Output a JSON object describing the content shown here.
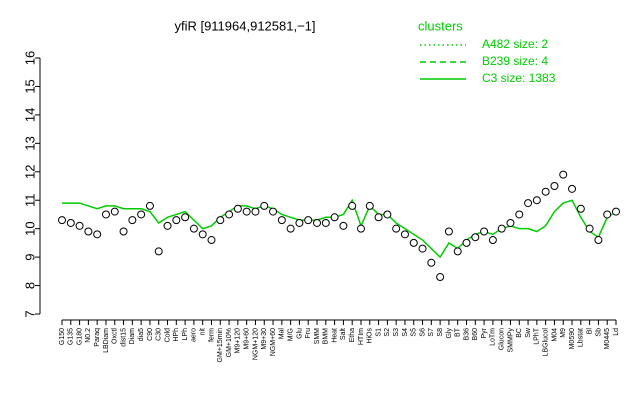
{
  "chart_data": {
    "type": "line",
    "title": "yfiR [911964,912581,−1]",
    "legend_title": "clusters",
    "categories": [
      "G150",
      "G135",
      "G180",
      "N0.2",
      "Paraq",
      "LBDiam",
      "Oxctl",
      "dist15",
      "Diam",
      "dia5",
      "C90",
      "C30",
      "Cold",
      "HPh",
      "LPh",
      "aero",
      "nit",
      "ferm",
      "GM+15min",
      "GM+10%",
      "M9+120",
      "M9+60",
      "NGM+120",
      "M9+30",
      "NGM+60",
      "Mal",
      "M/G",
      "Glu",
      "Fru",
      "SMM",
      "BMM",
      "Heat",
      "Salt",
      "Etha",
      "HTIm",
      "HiOs",
      "S1",
      "S2",
      "S3",
      "S4",
      "S5",
      "S6",
      "S7",
      "S8",
      "Gly",
      "BT",
      "B36",
      "B60",
      "Pyr",
      "LoTm",
      "Glucon",
      "SMMPy",
      "BC",
      "Sw",
      "LPhT",
      "LBGlucol",
      "M04",
      "M9",
      "M0590",
      "Lbstat",
      "Bl",
      "Sb",
      "M0445",
      "Ld"
    ],
    "points": {
      "color": "#000000",
      "values": [
        10.3,
        10.2,
        10.1,
        9.9,
        9.8,
        10.5,
        10.6,
        9.9,
        10.3,
        10.5,
        10.8,
        9.2,
        10.1,
        10.3,
        10.4,
        10.0,
        9.8,
        9.6,
        10.3,
        10.5,
        10.7,
        10.6,
        10.6,
        10.8,
        10.6,
        10.3,
        10.0,
        10.2,
        10.3,
        10.2,
        10.2,
        10.4,
        10.1,
        10.8,
        10.0,
        10.8,
        10.4,
        10.5,
        10.0,
        9.8,
        9.5,
        9.3,
        8.8,
        8.3,
        9.9,
        9.2,
        9.5,
        9.7,
        9.9,
        9.6,
        10.0,
        10.2,
        10.5,
        10.9,
        11.0,
        11.3,
        11.5,
        11.9,
        11.4,
        10.7,
        10.0,
        9.6,
        10.5,
        10.6
      ]
    },
    "series": [
      {
        "name": "A482 size: 2",
        "dash": "dotted",
        "color": "#00cc00",
        "values": [
          null,
          null,
          null,
          null,
          null,
          null,
          null,
          null,
          null,
          null,
          null,
          null,
          null,
          null,
          null,
          null,
          null,
          null,
          null,
          null,
          null,
          null,
          null,
          null,
          null,
          null,
          null,
          null,
          null,
          null,
          null,
          null,
          null,
          null,
          null,
          null,
          null,
          null,
          null,
          null,
          null,
          null,
          null,
          null,
          null,
          null,
          null,
          null,
          null,
          null,
          null,
          null,
          null,
          null,
          null,
          null,
          null,
          null,
          null,
          null,
          null,
          null,
          null,
          null
        ]
      },
      {
        "name": "B239 size: 4",
        "dash": "dashed",
        "color": "#00cc00",
        "values": [
          null,
          null,
          null,
          null,
          null,
          null,
          null,
          null,
          null,
          null,
          null,
          null,
          null,
          null,
          null,
          null,
          null,
          null,
          null,
          null,
          null,
          null,
          null,
          null,
          null,
          null,
          null,
          null,
          null,
          null,
          null,
          null,
          null,
          null,
          null,
          null,
          null,
          null,
          null,
          null,
          null,
          null,
          null,
          null,
          null,
          null,
          null,
          null,
          null,
          null,
          null,
          null,
          null,
          null,
          null,
          null,
          null,
          null,
          null,
          null,
          null,
          null,
          null,
          null
        ]
      },
      {
        "name": "C3 size: 1383",
        "dash": "solid",
        "color": "#00cc00",
        "values": [
          10.9,
          10.9,
          10.9,
          10.8,
          10.7,
          10.8,
          10.8,
          10.7,
          10.7,
          10.7,
          10.6,
          10.2,
          10.4,
          10.5,
          10.6,
          10.3,
          10.0,
          10.1,
          10.4,
          10.6,
          10.8,
          10.8,
          10.7,
          10.8,
          10.7,
          10.5,
          10.4,
          10.3,
          10.3,
          10.3,
          10.4,
          10.4,
          10.5,
          11.0,
          10.1,
          10.8,
          10.5,
          10.5,
          10.2,
          10.0,
          9.8,
          9.6,
          9.3,
          9.0,
          9.5,
          9.3,
          9.6,
          9.8,
          9.9,
          9.8,
          10.0,
          10.1,
          10.0,
          10.0,
          9.9,
          10.1,
          10.6,
          10.9,
          11.0,
          10.4,
          9.9,
          9.7,
          10.4,
          10.6
        ]
      }
    ],
    "ylim": [
      7,
      16
    ],
    "yticks": [
      7,
      8,
      9,
      10,
      11,
      12,
      13,
      14,
      15,
      16
    ]
  }
}
